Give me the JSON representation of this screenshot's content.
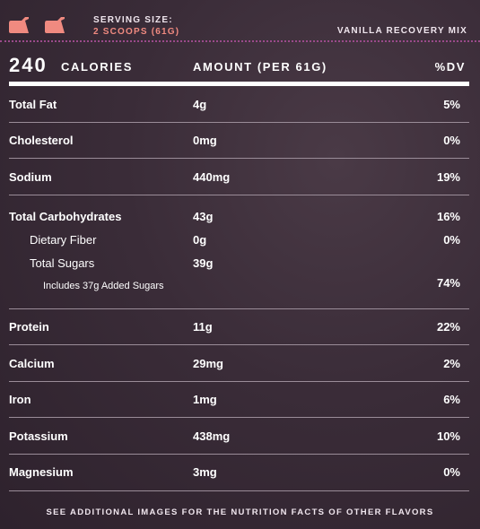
{
  "header": {
    "icon": "scoop-icon",
    "serving_label": "SERVING SIZE:",
    "serving_value": "2 SCOOPS (61G)",
    "product": "VANILLA RECOVERY MIX",
    "accent_color": "#f08a80",
    "divider_color": "#9a4a8a"
  },
  "calories": {
    "value": "240",
    "label": "CALORIES",
    "amount_header": "AMOUNT (PER 61G)",
    "dv_header": "%DV"
  },
  "nutrients": [
    {
      "name": "Total Fat",
      "amount": "4g",
      "dv": "5%"
    },
    {
      "name": "Cholesterol",
      "amount": "0mg",
      "dv": "0%"
    },
    {
      "name": "Sodium",
      "amount": "440mg",
      "dv": "19%"
    },
    {
      "name": "Total Carbohydrates",
      "amount": "43g",
      "dv": "16%"
    },
    {
      "name": "Dietary Fiber",
      "amount": "0g",
      "dv": "0%"
    },
    {
      "name": "Total Sugars",
      "amount": "39g",
      "dv": ""
    },
    {
      "name": "Includes 37g Added Sugars",
      "amount": "",
      "dv": "74%"
    },
    {
      "name": "Protein",
      "amount": "11g",
      "dv": "22%"
    },
    {
      "name": "Calcium",
      "amount": "29mg",
      "dv": "2%"
    },
    {
      "name": "Iron",
      "amount": "1mg",
      "dv": "6%"
    },
    {
      "name": "Potassium",
      "amount": "438mg",
      "dv": "10%"
    },
    {
      "name": "Magnesium",
      "amount": "3mg",
      "dv": "0%"
    }
  ],
  "footer": "SEE ADDITIONAL IMAGES FOR THE NUTRITION FACTS OF OTHER FLAVORS"
}
